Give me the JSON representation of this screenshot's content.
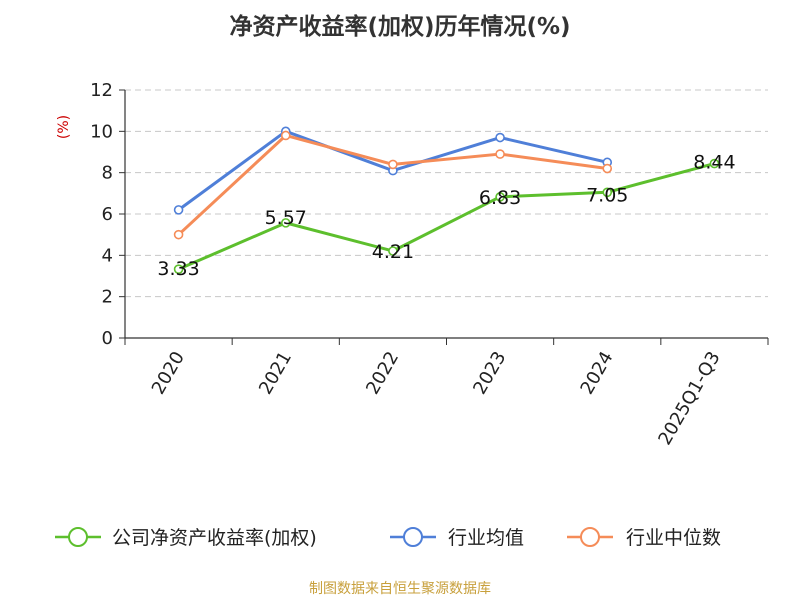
{
  "chart_data": {
    "type": "line",
    "title": "净资产收益率(加权)历年情况(%)",
    "ylabel": "(%)",
    "xlabel": "",
    "categories": [
      "2020",
      "2021",
      "2022",
      "2023",
      "2024",
      "2025Q1-Q3"
    ],
    "ylim": [
      0,
      12
    ],
    "yticks": [
      0,
      2,
      4,
      6,
      8,
      10,
      12
    ],
    "grid": true,
    "legend_position": "bottom",
    "series": [
      {
        "name": "公司净资产收益率(加权)",
        "color": "#5dbf2d",
        "values": [
          3.33,
          5.57,
          4.21,
          6.83,
          7.05,
          8.44
        ],
        "labels": [
          "3.33",
          "5.57",
          "4.21",
          "6.83",
          "7.05",
          "8.44"
        ]
      },
      {
        "name": "行业均值",
        "color": "#4f7fd8",
        "values": [
          6.2,
          10.0,
          8.1,
          9.7,
          8.5,
          null
        ]
      },
      {
        "name": "行业中位数",
        "color": "#f58c58",
        "values": [
          5.0,
          9.8,
          8.4,
          8.9,
          8.2,
          null
        ]
      }
    ]
  },
  "source": "制图数据来自恒生聚源数据库"
}
